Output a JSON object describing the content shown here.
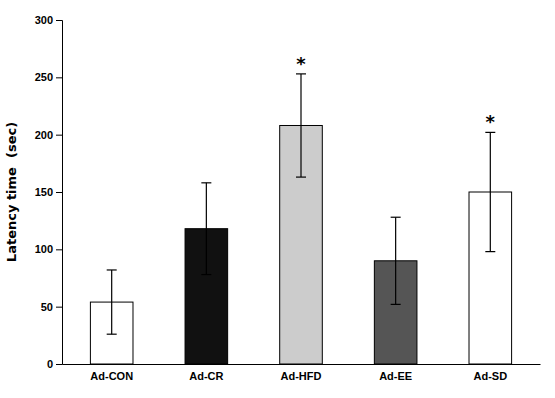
{
  "chart_data": {
    "type": "bar",
    "categories": [
      "Ad-CON",
      "Ad-CR",
      "Ad-HFD",
      "Ad-EE",
      "Ad-SD"
    ],
    "values": [
      54,
      118,
      208,
      90,
      150
    ],
    "errors": [
      28,
      40,
      45,
      38,
      52
    ],
    "colors": [
      "#ffffff",
      "#111111",
      "#cccccc",
      "#555555",
      "#ffffff"
    ],
    "ylabel": "Latency time  (sec)",
    "ylim": [
      0,
      300
    ],
    "yticks": [
      0,
      50,
      100,
      150,
      200,
      250,
      300
    ],
    "grid": false,
    "annotations": [
      {
        "text": "*",
        "category": "Ad-HFD"
      },
      {
        "text": "*",
        "category": "Ad-SD"
      }
    ]
  }
}
